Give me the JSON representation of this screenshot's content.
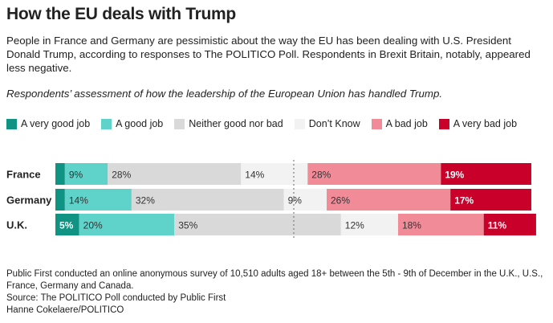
{
  "title": "How the EU deals with Trump",
  "intro": "People in France and Germany are pessimistic about the way the EU has been dealing with U.S. President Donald Trump, according to responses to The POLITICO Poll. Respondents in Brexit Britain, notably, appeared less negative.",
  "chart_data": {
    "type": "bar",
    "stacked": true,
    "orientation": "horizontal",
    "title": "Respondents’ assessment of how the leadership of the European Union has handled Trump.",
    "categories": [
      "France",
      "Germany",
      "U.K."
    ],
    "series": [
      {
        "name": "A very good job",
        "color": "#0f9484",
        "values": [
          2,
          2,
          5
        ],
        "labels": [
          "",
          "",
          "5%"
        ]
      },
      {
        "name": "A good job",
        "color": "#5fd2c9",
        "values": [
          9,
          14,
          20
        ],
        "labels": [
          "9%",
          "14%",
          "20%"
        ]
      },
      {
        "name": "Neither good nor bad",
        "color": "#d9d9d9",
        "values": [
          28,
          32,
          35
        ],
        "labels": [
          "28%",
          "32%",
          "35%"
        ]
      },
      {
        "name": "Don’t Know",
        "color": "#f2f2f2",
        "values": [
          14,
          9,
          12
        ],
        "labels": [
          "14%",
          "9%",
          "12%"
        ]
      },
      {
        "name": "A bad job",
        "color": "#f28b98",
        "values": [
          28,
          26,
          18
        ],
        "labels": [
          "28%",
          "26%",
          "18%"
        ]
      },
      {
        "name": "A very bad job",
        "color": "#c8002a",
        "values": [
          19,
          17,
          11
        ],
        "labels": [
          "19%",
          "17%",
          "11%"
        ]
      }
    ],
    "xlim": [
      0,
      101
    ],
    "legend": "top-left"
  },
  "footer": {
    "note": "Public First conducted an online anonymous survey of 10,510 adults aged 18+ between the 5th - 9th of December in the U.K., U.S., France, Germany and Canada.",
    "source": "Source: The POLITICO Poll conducted by Public First",
    "credit": "Hanne Cokelaere/POLITICO"
  }
}
